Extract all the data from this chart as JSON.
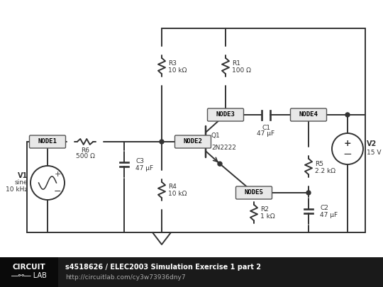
{
  "bg_color": "#ffffff",
  "footer_bg": "#1a1a1a",
  "footer_text1": "s4518626 / ELEC2003 Simulation Exercise 1 part 2",
  "footer_text2": "http://circuitlab.com/cy3w73936dny7",
  "footer_text_color": "#ffffff",
  "line_color": "#333333",
  "node_box_color": "#e8e8e8",
  "node_box_border": "#555555",
  "node_text_color": "#000000",
  "component_text_color": "#333333",
  "title": "ELEC2003 Simulation Exercise 1 part 2"
}
